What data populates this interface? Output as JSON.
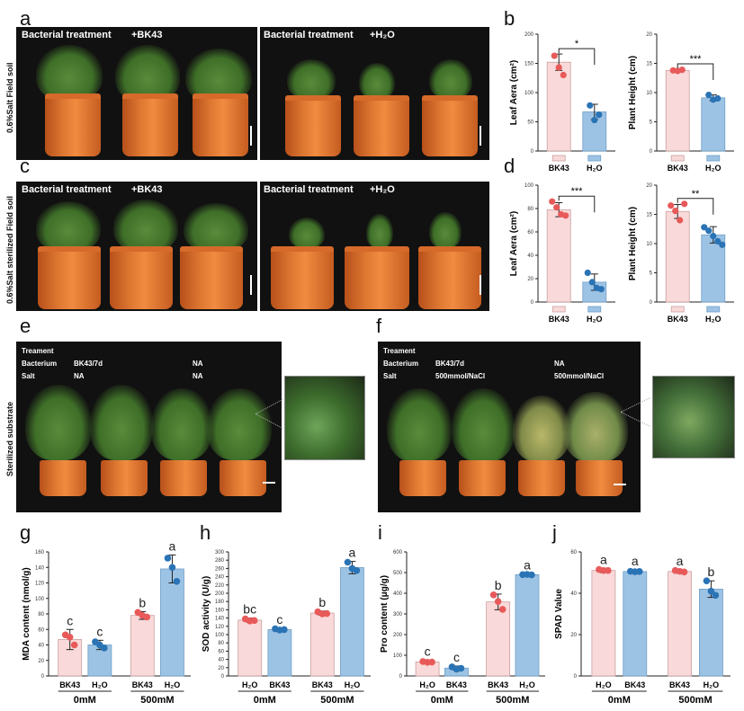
{
  "letters": {
    "a": "a",
    "b": "b",
    "c": "c",
    "d": "d",
    "e": "e",
    "f": "f",
    "g": "g",
    "h": "h",
    "i": "i",
    "j": "j"
  },
  "photos": {
    "a_left": "Bacterial treatment",
    "a_left_tag": "+BK43",
    "a_right": "Bacterial treatment",
    "a_right_tag": "+H₂O",
    "a_side": "0.6%Salt Field soil",
    "c_left": "Bacterial treatment",
    "c_left_tag": "+BK43",
    "c_right": "Bacterial treatment",
    "c_right_tag": "+H₂O",
    "c_side": "0.6%Salt sterilized Field soil",
    "e_side": "Sterilized substrate",
    "e_rows": [
      [
        "Treament",
        "",
        ""
      ],
      [
        "Bacterium",
        "BK43/7d",
        "NA"
      ],
      [
        "Salt",
        "NA",
        "NA"
      ]
    ],
    "f_rows": [
      [
        "Treament",
        "",
        ""
      ],
      [
        "Bacterium",
        "BK43/7d",
        "NA"
      ],
      [
        "Salt",
        "500mmol/NaCl",
        "500mmol/NaCl"
      ]
    ]
  },
  "colors": {
    "bk43_fill": "#f9d9d9",
    "bk43_dot": "#e85a5a",
    "h2o_fill": "#9dc3e4",
    "h2o_dot": "#2a73b5",
    "axis": "#222222",
    "bk43_edge": "#c9a0a0",
    "h2o_edge": "#6f9fc8"
  },
  "chart_data": [
    {
      "id": "b1",
      "type": "bar",
      "categories": [
        "BK43",
        "H₂O"
      ],
      "values": [
        152,
        67
      ],
      "errors": [
        14,
        13
      ],
      "points": [
        [
          163,
          143,
          130
        ],
        [
          78,
          53,
          62
        ]
      ],
      "ylabel": "Leaf Aera (cm²)",
      "ylim": [
        0,
        200
      ],
      "yticks": [
        0,
        50,
        100,
        150,
        200
      ],
      "sig": "*"
    },
    {
      "id": "b2",
      "type": "bar",
      "categories": [
        "BK43",
        "H₂O"
      ],
      "values": [
        13.8,
        9.1
      ],
      "errors": [
        0.2,
        0.5
      ],
      "points": [
        [
          13.8,
          13.7,
          13.9
        ],
        [
          9.6,
          8.8,
          9.0
        ]
      ],
      "ylabel": "Plant Height (cm)",
      "ylim": [
        0,
        20
      ],
      "yticks": [
        0,
        5,
        10,
        15,
        20
      ],
      "sig": "***"
    },
    {
      "id": "d1",
      "type": "bar",
      "categories": [
        "BK43",
        "H₂O"
      ],
      "values": [
        79,
        17
      ],
      "errors": [
        6,
        7
      ],
      "points": [
        [
          86,
          81,
          75,
          74
        ],
        [
          25,
          17,
          12,
          11
        ]
      ],
      "ylabel": "Leaf Aera (cm²)",
      "ylim": [
        0,
        100
      ],
      "yticks": [
        0,
        20,
        40,
        60,
        80,
        100
      ],
      "sig": "***"
    },
    {
      "id": "d2",
      "type": "bar",
      "categories": [
        "BK43",
        "H₂O"
      ],
      "values": [
        15.5,
        11.5
      ],
      "errors": [
        1.2,
        1.4
      ],
      "points": [
        [
          16.5,
          15.6,
          14,
          16.8
        ],
        [
          12.8,
          12.2,
          11.3,
          10.4,
          9.8
        ]
      ],
      "ylabel": "Plant Height (cm)",
      "ylim": [
        0,
        20
      ],
      "yticks": [
        0,
        5,
        10,
        15,
        20
      ],
      "sig": "**"
    },
    {
      "id": "g",
      "type": "bar",
      "categories": [
        "BK43",
        "H₂O",
        "BK43",
        "H₂O"
      ],
      "fills": [
        "bk43",
        "h2o",
        "bk43",
        "h2o"
      ],
      "groups": [
        "0mM",
        "500mM"
      ],
      "values": [
        47,
        40,
        78,
        138
      ],
      "errors": [
        13,
        6,
        5,
        18
      ],
      "points": [
        [
          53,
          50,
          40
        ],
        [
          44,
          40,
          36
        ],
        [
          82,
          78,
          76
        ],
        [
          152,
          140,
          122
        ]
      ],
      "letters": [
        "c",
        "c",
        "b",
        "a"
      ],
      "ylabel": "MDA content (nmol/g)",
      "ylim": [
        0,
        160
      ],
      "yticks": [
        0,
        20,
        40,
        60,
        80,
        100,
        120,
        140,
        160
      ]
    },
    {
      "id": "h",
      "type": "bar",
      "categories": [
        "H₂O",
        "BK43",
        "BK43",
        "H₂O"
      ],
      "fills": [
        "bk43",
        "h2o",
        "bk43",
        "h2o"
      ],
      "groups": [
        "0mM",
        "500mM"
      ],
      "values": [
        135,
        112,
        152,
        262
      ],
      "errors": [
        5,
        3,
        5,
        15
      ],
      "points": [
        [
          138,
          133,
          134
        ],
        [
          114,
          111,
          112
        ],
        [
          155,
          150,
          151
        ],
        [
          275,
          260,
          255
        ]
      ],
      "letters": [
        "bc",
        "c",
        "b",
        "a"
      ],
      "ylabel": "SOD activity (U/g)",
      "ylim": [
        0,
        300
      ],
      "yticks": [
        0,
        20,
        40,
        60,
        80,
        100,
        120,
        140,
        160,
        180,
        200,
        220,
        240,
        260,
        280,
        300
      ]
    },
    {
      "id": "i",
      "type": "bar",
      "categories": [
        "H₂O",
        "BK43",
        "BK43",
        "H₂O"
      ],
      "fills": [
        "bk43",
        "h2o",
        "bk43",
        "h2o"
      ],
      "groups": [
        "0mM",
        "500mM"
      ],
      "values": [
        68,
        38,
        358,
        490
      ],
      "errors": [
        8,
        10,
        38,
        3
      ],
      "points": [
        [
          70,
          66,
          67
        ],
        [
          44,
          33,
          37
        ],
        [
          392,
          360,
          322
        ],
        [
          490,
          491,
          489
        ]
      ],
      "letters": [
        "c",
        "c",
        "b",
        "a"
      ],
      "ylabel": "Pro content (μg/g)",
      "ylim": [
        0,
        600
      ],
      "yticks": [
        0,
        100,
        200,
        300,
        400,
        500,
        600
      ]
    },
    {
      "id": "j",
      "type": "bar",
      "categories": [
        "H₂O",
        "BK43",
        "BK43",
        "H₂O"
      ],
      "fills": [
        "bk43",
        "h2o",
        "bk43",
        "h2o"
      ],
      "groups": [
        "0mM",
        "500mM"
      ],
      "values": [
        51,
        50.5,
        50.5,
        42
      ],
      "errors": [
        1,
        0.8,
        0.8,
        4
      ],
      "points": [
        [
          51.5,
          51,
          51
        ],
        [
          50.6,
          50.4,
          50.5
        ],
        [
          51,
          50.6,
          50.3
        ],
        [
          46,
          41,
          39
        ]
      ],
      "letters": [
        "a",
        "a",
        "a",
        "b"
      ],
      "ylabel": "SPAD Value",
      "ylim": [
        0,
        60
      ],
      "yticks": [
        0,
        20,
        40,
        60
      ]
    }
  ]
}
